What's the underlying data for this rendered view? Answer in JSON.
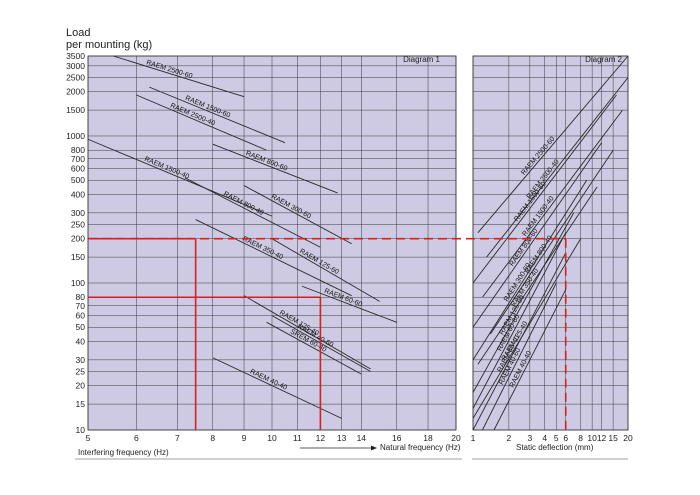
{
  "chart_data": {
    "type": "line",
    "y_title_line1": "Load",
    "y_title_line2": "per mounting (kg)",
    "y_scale": "log",
    "ylim": [
      10,
      3500
    ],
    "y_ticks": [
      3500,
      3000,
      2500,
      2000,
      1500,
      1000,
      800,
      700,
      600,
      500,
      400,
      300,
      250,
      200,
      150,
      100,
      80,
      70,
      60,
      50,
      40,
      30,
      25,
      20,
      15,
      10
    ],
    "grid": true,
    "background_color": "#cfcae3",
    "line_color": "#2a2a2a",
    "highlight_color": "#d42020",
    "diagram1": {
      "title": "Diagram  1",
      "x_scale": "log",
      "xlim": [
        5,
        20
      ],
      "x_ticks": [
        5,
        6,
        7,
        8,
        9,
        10,
        11,
        12,
        13,
        14,
        16,
        18,
        20
      ],
      "xlabel_bottom": "Interfering frequency (Hz)",
      "xlabel_natural": "Natural frequency (Hz)",
      "series": [
        {
          "name": "RAEM 2500-60",
          "x": [
            5.5,
            9.0
          ],
          "y": [
            3500,
            1850
          ]
        },
        {
          "name": "RAEM 1500-60",
          "x": [
            6.3,
            10.5
          ],
          "y": [
            2150,
            900
          ]
        },
        {
          "name": "RAEM 2500-40",
          "x": [
            6.0,
            9.8
          ],
          "y": [
            1900,
            800
          ]
        },
        {
          "name": "RAEM 800-60",
          "x": [
            8.0,
            12.8
          ],
          "y": [
            880,
            410
          ]
        },
        {
          "name": "RAEM 1500-40",
          "x": [
            5.0,
            10.0
          ],
          "y": [
            950,
            285
          ]
        },
        {
          "name": "RAEM 300-60",
          "x": [
            9.0,
            13.5
          ],
          "y": [
            460,
            185
          ]
        },
        {
          "name": "RAEM 800-40",
          "x": [
            7.2,
            12.0
          ],
          "y": [
            520,
            175
          ]
        },
        {
          "name": "RAEM 350-40",
          "x": [
            7.5,
            13.5
          ],
          "y": [
            270,
            82
          ]
        },
        {
          "name": "RAEM 125-60",
          "x": [
            10.0,
            15.0
          ],
          "y": [
            200,
            75
          ]
        },
        {
          "name": "RAEM 60-60",
          "x": [
            11.2,
            16.0
          ],
          "y": [
            95,
            54
          ]
        },
        {
          "name": "RAEM 125-40",
          "x": [
            9.0,
            14.5
          ],
          "y": [
            82,
            26
          ]
        },
        {
          "name": "RAEM 40-60",
          "x": [
            10.0,
            14.5
          ],
          "y": [
            60,
            25
          ]
        },
        {
          "name": "SREM 60-40",
          "x": [
            9.8,
            14.0
          ],
          "y": [
            54,
            24
          ]
        },
        {
          "name": "RAEM 40-40",
          "x": [
            8.0,
            13.0
          ],
          "y": [
            31,
            12
          ]
        }
      ],
      "guides": [
        {
          "x": 7.5,
          "y": 200
        },
        {
          "x": 12.0,
          "y": 80
        }
      ]
    },
    "diagram2": {
      "title": "Diagram  2",
      "x_scale": "log",
      "xlim": [
        1,
        20
      ],
      "x_ticks": [
        1,
        2,
        3,
        4,
        5,
        6,
        8,
        10,
        12,
        15,
        20
      ],
      "xlabel": "Static deflection (mm)",
      "series": [
        {
          "name": "RAEM 2500-60",
          "x": [
            1.1,
            20
          ],
          "y": [
            220,
            3500
          ]
        },
        {
          "name": "RAEM 2500-40",
          "x": [
            1.3,
            20
          ],
          "y": [
            150,
            2500
          ]
        },
        {
          "name": "RAEM 1500-60",
          "x": [
            1.0,
            16
          ],
          "y": [
            100,
            1900
          ]
        },
        {
          "name": "RAEM 1500-40",
          "x": [
            1.2,
            18
          ],
          "y": [
            80,
            1500
          ]
        },
        {
          "name": "RAEM 800-60",
          "x": [
            1.0,
            12
          ],
          "y": [
            50,
            900
          ]
        },
        {
          "name": "RAEM 800-40",
          "x": [
            1.4,
            15
          ],
          "y": [
            45,
            800
          ]
        },
        {
          "name": "RAEM 300-60",
          "x": [
            1.0,
            9
          ],
          "y": [
            30,
            500
          ]
        },
        {
          "name": "RAEM 350-40",
          "x": [
            1.1,
            11
          ],
          "y": [
            28,
            450
          ]
        },
        {
          "name": "RAEM 125-60",
          "x": [
            1.0,
            7
          ],
          "y": [
            18,
            300
          ]
        },
        {
          "name": "RAEM 60-60",
          "x": [
            1.0,
            6
          ],
          "y": [
            14,
            220
          ]
        },
        {
          "name": "RAEM 125-40",
          "x": [
            1.0,
            8
          ],
          "y": [
            12,
            200
          ]
        },
        {
          "name": "RAEM 60-40",
          "x": [
            1.0,
            6
          ],
          "y": [
            10,
            160
          ]
        },
        {
          "name": "RAEM 40-60",
          "x": [
            1.2,
            5
          ],
          "y": [
            10,
            100
          ]
        },
        {
          "name": "RAEM 40-40",
          "x": [
            1.5,
            6
          ],
          "y": [
            10,
            90
          ]
        }
      ],
      "guides": [
        {
          "x": 6.0,
          "y": 200
        }
      ]
    }
  }
}
